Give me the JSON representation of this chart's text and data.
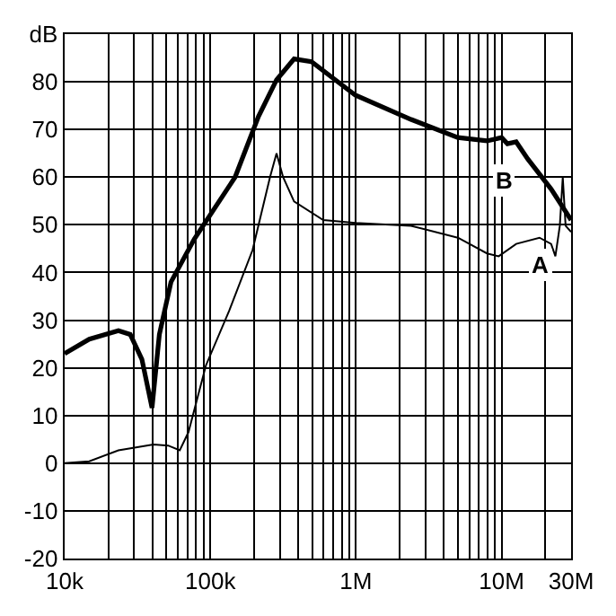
{
  "chart_data": {
    "type": "line",
    "log": "x",
    "grid": true,
    "legend": false,
    "marker": "none",
    "line_style": "solid",
    "xlim": [
      10000,
      30000000
    ],
    "xticks": [
      {
        "value": 10000,
        "label": "10k"
      },
      {
        "value": 100000,
        "label": "100k"
      },
      {
        "value": 1000000,
        "label": "1M"
      },
      {
        "value": 10000000,
        "label": "10M"
      },
      {
        "value": 30000000,
        "label": "30M"
      }
    ],
    "ylim": [
      -20,
      90
    ],
    "yticks": [
      -20,
      -10,
      0,
      10,
      20,
      30,
      40,
      50,
      60,
      70,
      80,
      {
        "value": 90,
        "label": "dB"
      }
    ],
    "series": [
      {
        "name": "A",
        "color": "#000000",
        "x": [
          10000,
          14760,
          23400,
          40700,
          51300,
          61700,
          70800,
          93300,
          134900,
          195000,
          257000,
          285000,
          316000,
          376000,
          596000,
          991000,
          2390000,
          5010000,
          7940000,
          9550000,
          12590000,
          18200000,
          21880000,
          23400000,
          25100000,
          26300000,
          27500000,
          30000000
        ],
        "values": [
          0,
          0.4,
          2.7,
          3.9,
          3.7,
          2.7,
          6.5,
          20.5,
          32,
          44.7,
          60,
          65,
          60,
          54.9,
          51,
          50.4,
          49.8,
          47.3,
          44,
          43.4,
          46,
          47.3,
          46,
          43.4,
          49.8,
          60,
          49.8,
          48.5
        ]
      },
      {
        "name": "B",
        "color": "#000000",
        "x": [
          10000,
          14760,
          23400,
          28200,
          33900,
          39800,
          44700,
          53700,
          77600,
          148000,
          214000,
          285000,
          376000,
          495000,
          991000,
          2390000,
          5010000,
          7940000,
          10000000,
          10960000,
          12590000,
          15140000,
          21880000,
          30000000
        ],
        "values": [
          23,
          26,
          27.8,
          27,
          21.8,
          11.6,
          27,
          38,
          47,
          60,
          72.7,
          80.4,
          84.8,
          84.2,
          77.2,
          72.1,
          68.3,
          67.6,
          68.3,
          67,
          67.4,
          63.8,
          57.5,
          51
        ]
      }
    ]
  }
}
